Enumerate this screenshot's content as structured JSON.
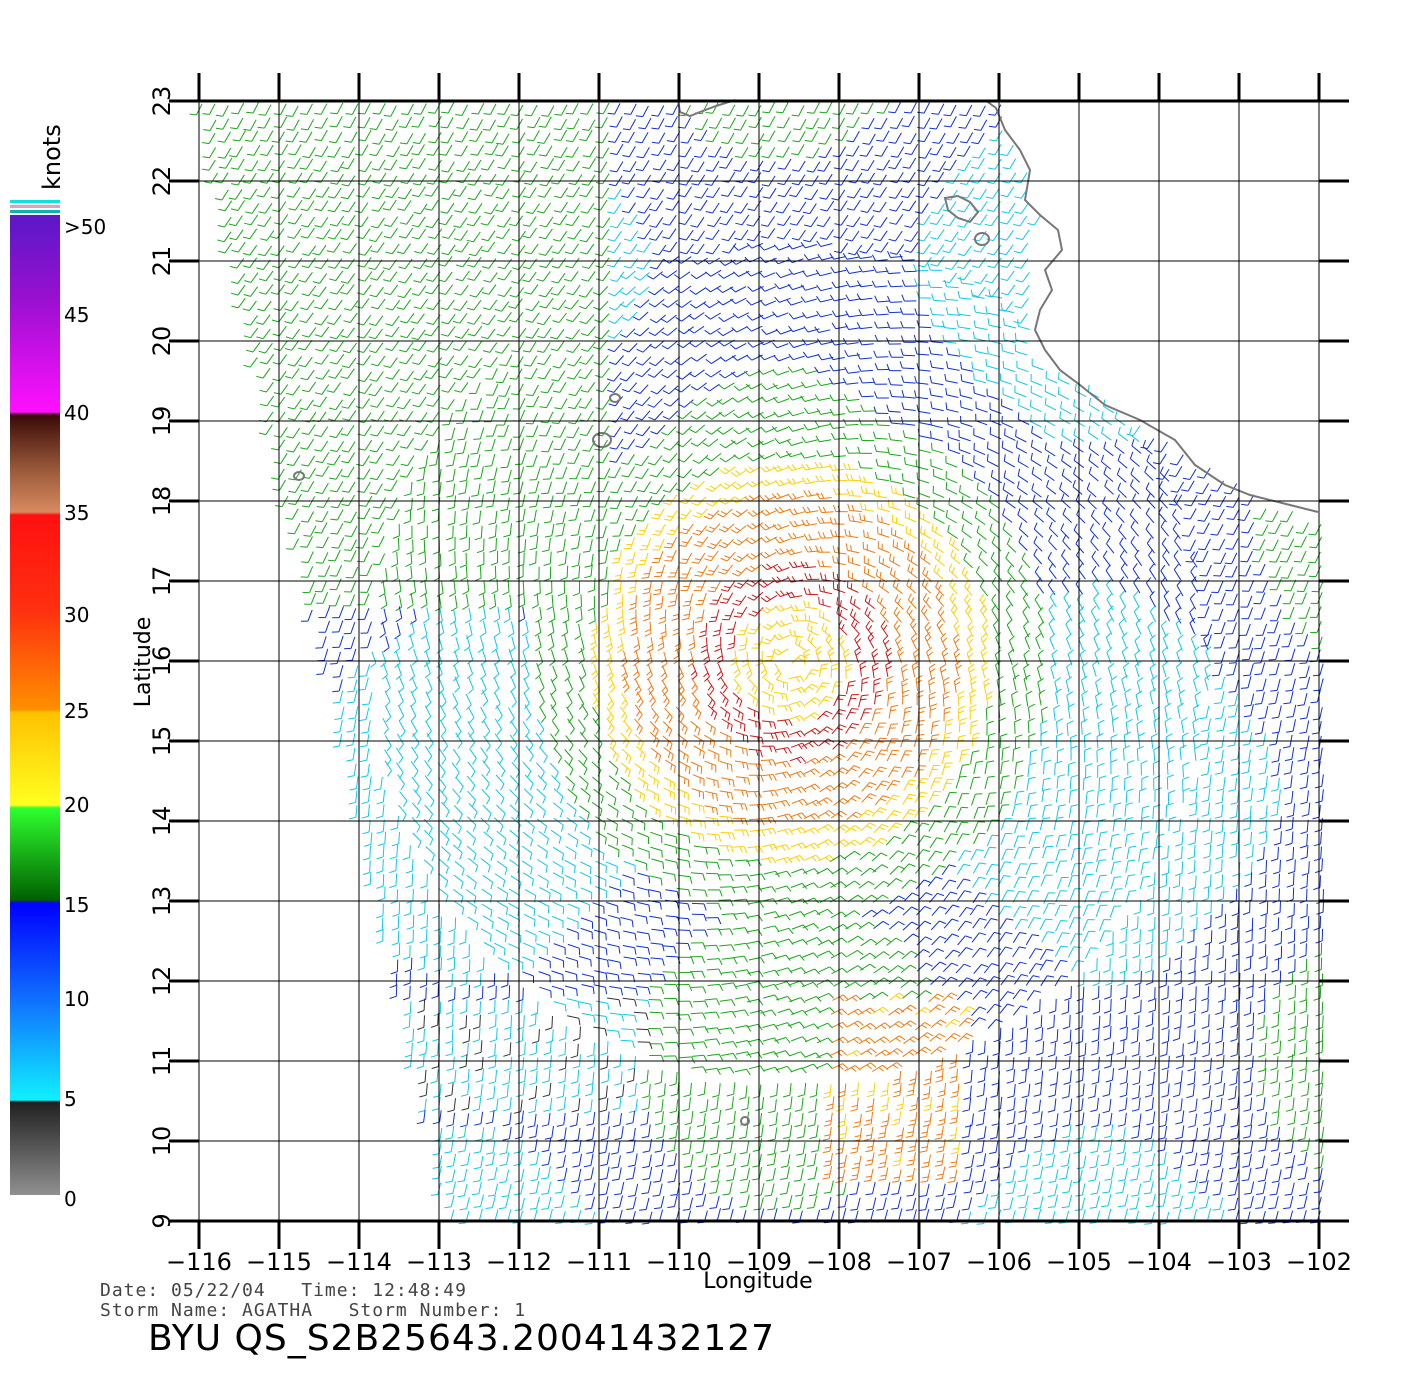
{
  "map": {
    "xlabel": "Longitude",
    "ylabel": "Latitude",
    "lon_range": [
      -116,
      -102
    ],
    "lat_range": [
      9,
      23
    ],
    "lon_ticks": [
      "−116",
      "−115",
      "−114",
      "−113",
      "−112",
      "−111",
      "−110",
      "−109",
      "−108",
      "−107",
      "−106",
      "−105",
      "−104",
      "−103",
      "−102"
    ],
    "lat_ticks": [
      "9",
      "10",
      "11",
      "12",
      "13",
      "14",
      "15",
      "16",
      "17",
      "18",
      "19",
      "20",
      "21",
      "22",
      "23"
    ],
    "storm_center": {
      "lon": -108.6,
      "lat": 16.0
    },
    "grid": true
  },
  "colorbar": {
    "unit": "knots",
    "labels": [
      ">50",
      "45",
      "40",
      "35",
      "30",
      "25",
      "20",
      "15",
      "10",
      "5",
      "0"
    ],
    "colors": [
      "#7b1fd6",
      "#ff10ff",
      "#4a1a10",
      "#ff1010",
      "#ff8800",
      "#ffff20",
      "#10ff10",
      "#0020ff",
      "#10e8ff",
      "#303030",
      "#808080"
    ]
  },
  "info": {
    "date_line": "Date: 05/22/04   Time: 12:48:49",
    "storm_line": "Storm Name: AGATHA   Storm Number: 1",
    "product_id": "BYU QS_S2B25643.20041432127"
  }
}
